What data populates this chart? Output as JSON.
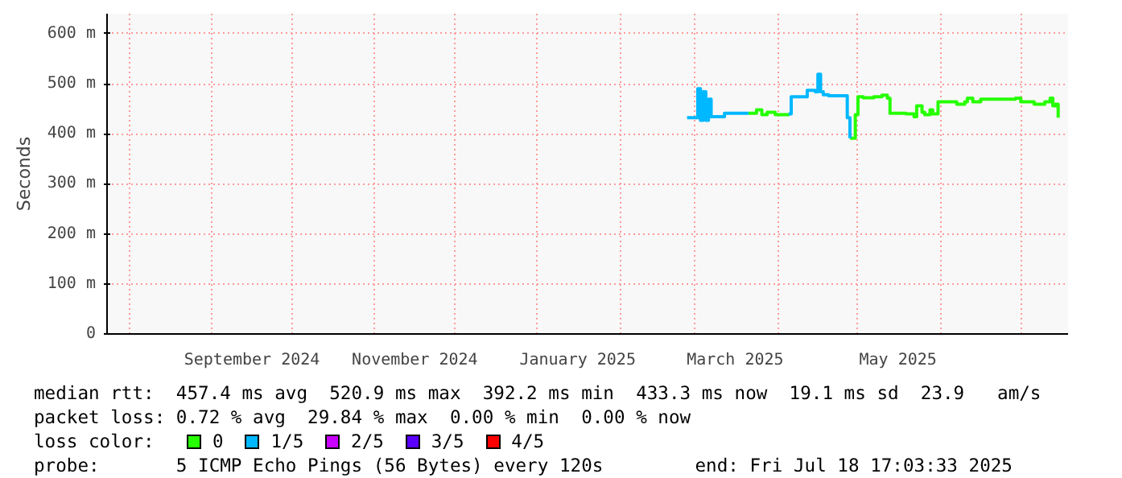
{
  "chart_data": {
    "type": "step",
    "ylabel": "Seconds",
    "xlim": [
      "2024-07-23T17:03",
      "2025-07-18T17:03"
    ],
    "xticks": [
      {
        "value": "2024-08-01",
        "label": null
      },
      {
        "value": "2024-09-01",
        "label": null
      },
      {
        "value": "2024-09-16",
        "label": "September 2024"
      },
      {
        "value": "2024-10-01",
        "label": null
      },
      {
        "value": "2024-11-01",
        "label": null
      },
      {
        "value": "2024-11-16",
        "label": "November 2024"
      },
      {
        "value": "2024-12-01",
        "label": null
      },
      {
        "value": "2025-01-01",
        "label": null
      },
      {
        "value": "2025-01-16",
        "label": "January 2025"
      },
      {
        "value": "2025-02-01",
        "label": null
      },
      {
        "value": "2025-03-01",
        "label": null
      },
      {
        "value": "2025-03-16",
        "label": "March 2025"
      },
      {
        "value": "2025-04-01",
        "label": null
      },
      {
        "value": "2025-05-01",
        "label": null
      },
      {
        "value": "2025-05-16",
        "label": "May 2025"
      },
      {
        "value": "2025-06-01",
        "label": null
      },
      {
        "value": "2025-07-01",
        "label": null
      }
    ],
    "ylim": [
      0,
      640
    ],
    "yticks": [
      {
        "value": 0,
        "label": "0"
      },
      {
        "value": 100,
        "label": "100 m"
      },
      {
        "value": 200,
        "label": "200 m"
      },
      {
        "value": 300,
        "label": "300 m"
      },
      {
        "value": 400,
        "label": "400 m"
      },
      {
        "value": 500,
        "label": "500 m"
      },
      {
        "value": 600,
        "label": "600 m"
      }
    ],
    "grid": true,
    "legend": "bottom",
    "x": [
      "2025-02-26",
      "2025-03-01",
      "2025-03-02",
      "2025-03-03",
      "2025-03-04",
      "2025-03-05",
      "2025-03-06",
      "2025-03-07",
      "2025-03-10",
      "2025-03-12",
      "2025-03-21",
      "2025-03-24",
      "2025-03-26",
      "2025-03-28",
      "2025-03-31",
      "2025-04-05",
      "2025-04-06",
      "2025-04-11",
      "2025-04-12",
      "2025-04-15",
      "2025-04-16",
      "2025-04-17",
      "2025-04-18",
      "2025-04-20",
      "2025-04-26",
      "2025-04-27",
      "2025-04-28",
      "2025-04-29",
      "2025-04-30",
      "2025-05-01",
      "2025-05-03",
      "2025-05-07",
      "2025-05-10",
      "2025-05-12",
      "2025-05-13",
      "2025-05-19",
      "2025-05-22",
      "2025-05-23",
      "2025-05-25",
      "2025-05-26",
      "2025-05-28",
      "2025-05-29",
      "2025-05-31",
      "2025-06-04",
      "2025-06-07",
      "2025-06-10",
      "2025-06-11",
      "2025-06-13",
      "2025-06-16",
      "2025-06-26",
      "2025-06-29",
      "2025-07-01",
      "2025-07-04",
      "2025-07-06",
      "2025-07-10",
      "2025-07-12",
      "2025-07-13",
      "2025-07-14",
      "2025-07-15"
    ],
    "series": [
      {
        "name": "0",
        "color": "#26ff00",
        "values": [
          null,
          null,
          null,
          null,
          null,
          null,
          null,
          null,
          null,
          null,
          441,
          448,
          438,
          443,
          438,
          440,
          null,
          null,
          null,
          null,
          null,
          null,
          null,
          null,
          null,
          null,
          391,
          391,
          438,
          474,
          472,
          474,
          477,
          471,
          441,
          440,
          434,
          456,
          443,
          438,
          448,
          440,
          464,
          464,
          459,
          464,
          471,
          464,
          469,
          469,
          471,
          464,
          464,
          459,
          464,
          471,
          456,
          459,
          432
        ]
      },
      {
        "name": "1/5",
        "color": "#00b8ff",
        "values": [
          432,
          432,
          490,
          427,
          484,
          427,
          469,
          434,
          434,
          441,
          441,
          null,
          null,
          null,
          null,
          440,
          474,
          474,
          487,
          484,
          519,
          484,
          478,
          476,
          476,
          432,
          391,
          null,
          null,
          null,
          null,
          null,
          null,
          null,
          null,
          null,
          null,
          null,
          null,
          null,
          null,
          null,
          null,
          null,
          null,
          null,
          null,
          null,
          null,
          null,
          null,
          null,
          null,
          null,
          null,
          null,
          null,
          null,
          null
        ]
      },
      {
        "name": "2/5",
        "color": "#ca00ff",
        "values": [
          null,
          null,
          null,
          null,
          null,
          null,
          null,
          null,
          null,
          null,
          null,
          null,
          null,
          null,
          null,
          null,
          null,
          null,
          null,
          null,
          null,
          null,
          null,
          null,
          null,
          null,
          null,
          null,
          null,
          null,
          null,
          null,
          null,
          null,
          null,
          null,
          null,
          null,
          null,
          null,
          null,
          null,
          null,
          null,
          null,
          null,
          null,
          null,
          null,
          null,
          null,
          null,
          null,
          null,
          null,
          null,
          null,
          null,
          null
        ]
      },
      {
        "name": "3/5",
        "color": "#5a00ff",
        "values": [
          null,
          null,
          null,
          null,
          null,
          null,
          null,
          null,
          null,
          null,
          null,
          null,
          null,
          null,
          null,
          null,
          null,
          null,
          null,
          null,
          null,
          null,
          null,
          null,
          null,
          null,
          null,
          null,
          null,
          null,
          null,
          null,
          null,
          null,
          null,
          null,
          null,
          null,
          null,
          null,
          null,
          null,
          null,
          null,
          null,
          null,
          null,
          null,
          null,
          null,
          null,
          null,
          null,
          null,
          null,
          null,
          null,
          null,
          null
        ]
      },
      {
        "name": "4/5",
        "color": "#ff0000",
        "values": [
          null,
          null,
          null,
          null,
          null,
          null,
          null,
          null,
          null,
          null,
          null,
          null,
          null,
          null,
          null,
          null,
          null,
          null,
          null,
          null,
          null,
          null,
          null,
          null,
          null,
          null,
          null,
          null,
          null,
          null,
          null,
          null,
          null,
          null,
          null,
          null,
          null,
          null,
          null,
          null,
          null,
          null,
          null,
          null,
          null,
          null,
          null,
          null,
          null,
          null,
          null,
          null,
          null,
          null,
          null,
          null,
          null,
          null,
          null
        ]
      }
    ],
    "annotations": [
      "median rtt:  457.4 ms avg  520.9 ms max  392.2 ms min  433.3 ms now  19.1 ms sd  23.9   am/s",
      "packet loss: 0.72 % avg  29.84 % max  0.00 % min  0.00 % now",
      "loss color:",
      "probe:       5 ICMP Echo Pings (56 Bytes) every 120s",
      "end: Fri Jul 18 17:03:33 2025"
    ]
  }
}
